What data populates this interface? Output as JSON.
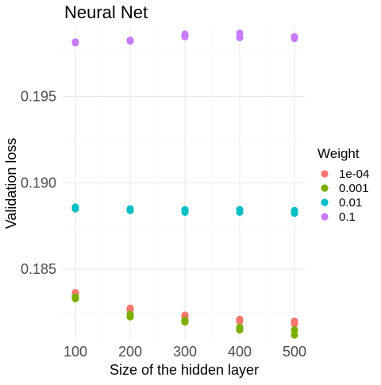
{
  "chart_data": {
    "type": "scatter",
    "title": "Neural Net",
    "xlabel": "Size of the hidden layer",
    "ylabel": "Validation loss",
    "x_ticks": [
      100,
      200,
      300,
      400,
      500
    ],
    "x_tick_labels": [
      "100",
      "200",
      "300",
      "400",
      "500"
    ],
    "y_ticks": [
      0.185,
      0.19,
      0.195
    ],
    "y_tick_labels": [
      "0.185",
      "0.190",
      "0.195"
    ],
    "xlim": [
      100,
      500
    ],
    "ylim": [
      0.1812,
      0.1986
    ],
    "grid": true,
    "legend": {
      "title": "Weight",
      "position": "right"
    },
    "series": [
      {
        "name": "1e-04",
        "color": "#F8766D",
        "points": [
          {
            "x": 100,
            "y": 0.18365
          },
          {
            "x": 100,
            "y": 0.18355
          },
          {
            "x": 200,
            "y": 0.18275
          },
          {
            "x": 200,
            "y": 0.18265
          },
          {
            "x": 300,
            "y": 0.18235
          },
          {
            "x": 300,
            "y": 0.18225
          },
          {
            "x": 400,
            "y": 0.1821
          },
          {
            "x": 400,
            "y": 0.182
          },
          {
            "x": 500,
            "y": 0.182
          },
          {
            "x": 500,
            "y": 0.18185
          }
        ]
      },
      {
        "name": "0.001",
        "color": "#7CAE00",
        "points": [
          {
            "x": 100,
            "y": 0.1834
          },
          {
            "x": 100,
            "y": 0.1833
          },
          {
            "x": 200,
            "y": 0.1824
          },
          {
            "x": 200,
            "y": 0.18225
          },
          {
            "x": 300,
            "y": 0.18205
          },
          {
            "x": 300,
            "y": 0.18195
          },
          {
            "x": 400,
            "y": 0.18165
          },
          {
            "x": 400,
            "y": 0.1815
          },
          {
            "x": 500,
            "y": 0.1815
          },
          {
            "x": 500,
            "y": 0.1812
          }
        ]
      },
      {
        "name": "0.01",
        "color": "#00BFC4",
        "points": [
          {
            "x": 100,
            "y": 0.1886
          },
          {
            "x": 100,
            "y": 0.1885
          },
          {
            "x": 200,
            "y": 0.1885
          },
          {
            "x": 200,
            "y": 0.1884
          },
          {
            "x": 300,
            "y": 0.18845
          },
          {
            "x": 300,
            "y": 0.1883
          },
          {
            "x": 400,
            "y": 0.18845
          },
          {
            "x": 400,
            "y": 0.1883
          },
          {
            "x": 500,
            "y": 0.1884
          },
          {
            "x": 500,
            "y": 0.18825
          }
        ]
      },
      {
        "name": "0.1",
        "color": "#C77CFF",
        "points": [
          {
            "x": 100,
            "y": 0.19815
          },
          {
            "x": 100,
            "y": 0.1981
          },
          {
            "x": 200,
            "y": 0.19825
          },
          {
            "x": 200,
            "y": 0.1982
          },
          {
            "x": 300,
            "y": 0.1986
          },
          {
            "x": 300,
            "y": 0.19845
          },
          {
            "x": 400,
            "y": 0.19865
          },
          {
            "x": 400,
            "y": 0.1984
          },
          {
            "x": 500,
            "y": 0.19845
          },
          {
            "x": 500,
            "y": 0.19835
          }
        ]
      }
    ]
  }
}
